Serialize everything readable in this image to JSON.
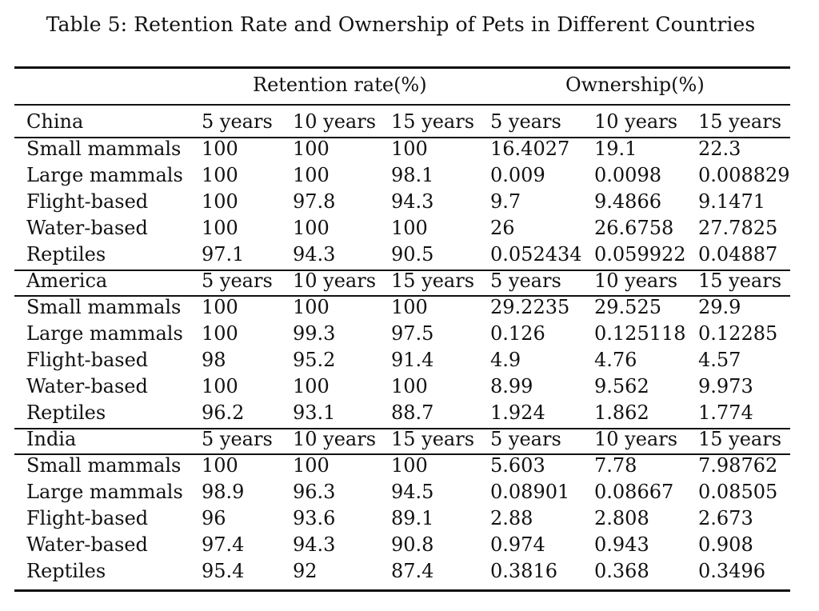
{
  "caption": "Table 5: Retention Rate and Ownership of Pets in Different Countries",
  "group_headers": {
    "retention": "Retention rate(%)",
    "ownership": "Ownership(%)"
  },
  "sections": [
    {
      "country": "China",
      "columns": [
        "5 years",
        "10 years",
        "15 years",
        "5 years",
        "10 years",
        "15 years"
      ],
      "rows": [
        {
          "label": "Small mammals",
          "values": [
            "100",
            "100",
            "100",
            "16.4027",
            "19.1",
            "22.3"
          ]
        },
        {
          "label": "Large mammals",
          "values": [
            "100",
            "100",
            "98.1",
            "0.009",
            "0.0098",
            "0.008829"
          ]
        },
        {
          "label": "Flight-based",
          "values": [
            "100",
            "97.8",
            "94.3",
            "9.7",
            "9.4866",
            "9.1471"
          ]
        },
        {
          "label": "Water-based",
          "values": [
            "100",
            "100",
            "100",
            "26",
            "26.6758",
            "27.7825"
          ]
        },
        {
          "label": "Reptiles",
          "values": [
            "97.1",
            "94.3",
            "90.5",
            "0.052434",
            "0.059922",
            "0.04887"
          ]
        }
      ]
    },
    {
      "country": "America",
      "columns": [
        "5 years",
        "10 years",
        "15 years",
        "5 years",
        "10 years",
        "15 years"
      ],
      "rows": [
        {
          "label": "Small mammals",
          "values": [
            "100",
            "100",
            "100",
            "29.2235",
            "29.525",
            "29.9"
          ]
        },
        {
          "label": "Large mammals",
          "values": [
            "100",
            "99.3",
            "97.5",
            "0.126",
            "0.125118",
            "0.12285"
          ]
        },
        {
          "label": "Flight-based",
          "values": [
            "98",
            "95.2",
            "91.4",
            "4.9",
            "4.76",
            "4.57"
          ]
        },
        {
          "label": "Water-based",
          "values": [
            "100",
            "100",
            "100",
            "8.99",
            "9.562",
            "9.973"
          ]
        },
        {
          "label": "Reptiles",
          "values": [
            "96.2",
            "93.1",
            "88.7",
            "1.924",
            "1.862",
            "1.774"
          ]
        }
      ]
    },
    {
      "country": "India",
      "columns": [
        "5 years",
        "10 years",
        "15 years",
        "5 years",
        "10 years",
        "15 years"
      ],
      "rows": [
        {
          "label": "Small mammals",
          "values": [
            "100",
            "100",
            "100",
            "5.603",
            "7.78",
            "7.98762"
          ]
        },
        {
          "label": "Large mammals",
          "values": [
            "98.9",
            "96.3",
            "94.5",
            "0.08901",
            "0.08667",
            "0.08505"
          ]
        },
        {
          "label": "Flight-based",
          "values": [
            "96",
            "93.6",
            "89.1",
            "2.88",
            "2.808",
            "2.673"
          ]
        },
        {
          "label": "Water-based",
          "values": [
            "97.4",
            "94.3",
            "90.8",
            "0.974",
            "0.943",
            "0.908"
          ]
        },
        {
          "label": "Reptiles",
          "values": [
            "95.4",
            "92",
            "87.4",
            "0.3816",
            "0.368",
            "0.3496"
          ]
        }
      ]
    }
  ]
}
